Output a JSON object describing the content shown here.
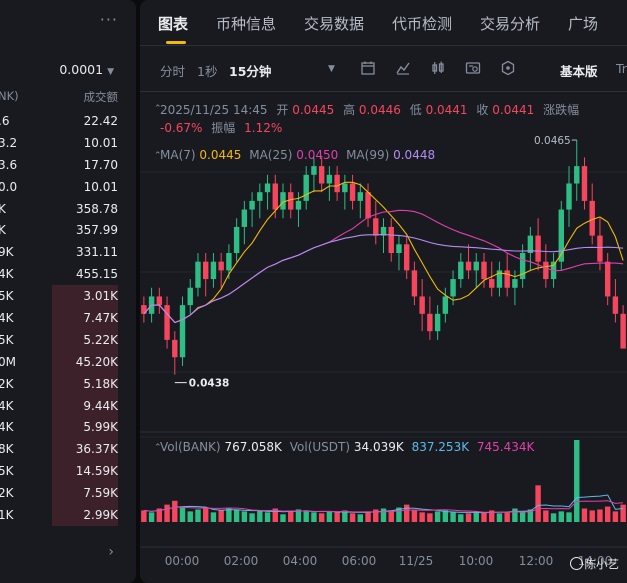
{
  "order_book": {
    "precision": "0.0001",
    "header_left": "NK)",
    "header_right": "成交额",
    "rows": [
      {
        "left": ".6",
        "right": "22.42",
        "bar": 0
      },
      {
        "left": "3.2",
        "right": "10.01",
        "bar": 0
      },
      {
        "left": "3.6",
        "right": "17.70",
        "bar": 0
      },
      {
        "left": "0.0",
        "right": "10.01",
        "bar": 0
      },
      {
        "left": "K",
        "right": "358.78",
        "bar": 0
      },
      {
        "left": "K",
        "right": "357.99",
        "bar": 0
      },
      {
        "left": "9K",
        "right": "331.11",
        "bar": 0
      },
      {
        "left": "4K",
        "right": "455.15",
        "bar": 0
      },
      {
        "left": "5K",
        "right": "3.01K",
        "bar": 1
      },
      {
        "left": "4K",
        "right": "7.47K",
        "bar": 1
      },
      {
        "left": "5K",
        "right": "5.22K",
        "bar": 1
      },
      {
        "left": "0M",
        "right": "45.20K",
        "bar": 1
      },
      {
        "left": "2K",
        "right": "5.18K",
        "bar": 1
      },
      {
        "left": "4K",
        "right": "9.44K",
        "bar": 1
      },
      {
        "left": "4K",
        "right": "5.99K",
        "bar": 1
      },
      {
        "left": "8K",
        "right": "36.37K",
        "bar": 1
      },
      {
        "left": "5K",
        "right": "14.59K",
        "bar": 1
      },
      {
        "left": "2K",
        "right": "7.59K",
        "bar": 1
      },
      {
        "left": "1K",
        "right": "2.99K",
        "bar": 1
      }
    ]
  },
  "tabs": [
    "图表",
    "币种信息",
    "交易数据",
    "代币检测",
    "交易分析",
    "广场"
  ],
  "toolbar": {
    "time": "分时",
    "sec": "1秒",
    "interval": "15分钟",
    "mode": "基本版",
    "extra": "Tr"
  },
  "ohlc": {
    "datetime": "2025/11/25 14:45",
    "open_label": "开",
    "open": "0.0445",
    "high_label": "高",
    "high": "0.0446",
    "low_label": "低",
    "low": "0.0441",
    "close_label": "收",
    "close": "0.0441",
    "change_label": "涨跌幅",
    "change": "-0.67%",
    "amp_label": "振幅",
    "amp": "1.12%"
  },
  "ma": {
    "ma7_label": "MA(7)",
    "ma7": "0.0445",
    "ma25_label": "MA(25)",
    "ma25": "0.0450",
    "ma99_label": "MA(99)",
    "ma99": "0.0448"
  },
  "vol": {
    "bank_label": "Vol(BANK)",
    "bank": "767.058K",
    "usdt_label": "Vol(USDT)",
    "usdt": "34.039K",
    "v2": "837.253K",
    "v3": "745.434K"
  },
  "price_marks": {
    "high": "0.0465",
    "low": "0.0438"
  },
  "x_labels": [
    "00:00",
    "02:00",
    "04:00",
    "06:00",
    "11/25",
    "10:00",
    "12:00",
    "14:00"
  ],
  "watermark": "陈小艺",
  "colors": {
    "up": "#2ebd85",
    "down": "#f6465d",
    "ma7": "#f0b90b",
    "ma25": "#e23fab",
    "ma99": "#b48cf2",
    "accent": "#f0b90b"
  },
  "chart_data": {
    "type": "candlestick",
    "interval": "15m",
    "ylim": [
      0.0436,
      0.0468
    ],
    "x_labels": [
      "00:00",
      "02:00",
      "04:00",
      "06:00",
      "11/25",
      "10:00",
      "12:00",
      "14:00"
    ],
    "candles": [
      [
        0.0446,
        0.0447,
        0.0444,
        0.0445
      ],
      [
        0.0445,
        0.0448,
        0.0444,
        0.0447
      ],
      [
        0.0447,
        0.0448,
        0.0445,
        0.0446
      ],
      [
        0.0446,
        0.0447,
        0.0441,
        0.0442
      ],
      [
        0.0442,
        0.0443,
        0.0438,
        0.044
      ],
      [
        0.044,
        0.0447,
        0.0439,
        0.0446
      ],
      [
        0.0446,
        0.0449,
        0.0445,
        0.0448
      ],
      [
        0.0448,
        0.0452,
        0.0447,
        0.0451
      ],
      [
        0.0451,
        0.0452,
        0.0447,
        0.0449
      ],
      [
        0.0449,
        0.0452,
        0.0448,
        0.0451
      ],
      [
        0.0451,
        0.0452,
        0.0448,
        0.045
      ],
      [
        0.045,
        0.0453,
        0.0449,
        0.0452
      ],
      [
        0.0452,
        0.0456,
        0.0451,
        0.0455
      ],
      [
        0.0455,
        0.0458,
        0.0453,
        0.0457
      ],
      [
        0.0457,
        0.0459,
        0.0455,
        0.0458
      ],
      [
        0.0458,
        0.046,
        0.0456,
        0.0459
      ],
      [
        0.0459,
        0.0461,
        0.0457,
        0.046
      ],
      [
        0.046,
        0.0461,
        0.0456,
        0.0457
      ],
      [
        0.0457,
        0.046,
        0.0456,
        0.0459
      ],
      [
        0.0459,
        0.046,
        0.0456,
        0.0457
      ],
      [
        0.0457,
        0.0459,
        0.0455,
        0.0458
      ],
      [
        0.0458,
        0.0462,
        0.0457,
        0.0461
      ],
      [
        0.0461,
        0.0463,
        0.0459,
        0.0462
      ],
      [
        0.0462,
        0.0463,
        0.0459,
        0.046
      ],
      [
        0.046,
        0.0462,
        0.0458,
        0.0461
      ],
      [
        0.0461,
        0.0462,
        0.0458,
        0.0459
      ],
      [
        0.0459,
        0.0461,
        0.0457,
        0.046
      ],
      [
        0.046,
        0.0461,
        0.0457,
        0.0458
      ],
      [
        0.0458,
        0.046,
        0.0456,
        0.0459
      ],
      [
        0.0459,
        0.046,
        0.0455,
        0.0456
      ],
      [
        0.0456,
        0.0458,
        0.0453,
        0.0454
      ],
      [
        0.0454,
        0.0456,
        0.0452,
        0.0455
      ],
      [
        0.0455,
        0.0456,
        0.0451,
        0.0452
      ],
      [
        0.0452,
        0.0454,
        0.045,
        0.0453
      ],
      [
        0.0453,
        0.0454,
        0.0449,
        0.045
      ],
      [
        0.045,
        0.0451,
        0.0446,
        0.0447
      ],
      [
        0.0447,
        0.0449,
        0.0443,
        0.0445
      ],
      [
        0.0445,
        0.0447,
        0.0442,
        0.0443
      ],
      [
        0.0443,
        0.0446,
        0.0442,
        0.0445
      ],
      [
        0.0445,
        0.0448,
        0.0444,
        0.0447
      ],
      [
        0.0447,
        0.045,
        0.0446,
        0.0449
      ],
      [
        0.0449,
        0.0452,
        0.0448,
        0.0451
      ],
      [
        0.0451,
        0.0453,
        0.0449,
        0.045
      ],
      [
        0.045,
        0.0452,
        0.0448,
        0.0451
      ],
      [
        0.0451,
        0.0452,
        0.0448,
        0.0449
      ],
      [
        0.0449,
        0.0451,
        0.0447,
        0.0448
      ],
      [
        0.0448,
        0.0451,
        0.0447,
        0.045
      ],
      [
        0.045,
        0.0452,
        0.0447,
        0.0448
      ],
      [
        0.0448,
        0.045,
        0.0446,
        0.0449
      ],
      [
        0.0449,
        0.0453,
        0.0448,
        0.0452
      ],
      [
        0.0452,
        0.0455,
        0.045,
        0.0454
      ],
      [
        0.0454,
        0.0456,
        0.045,
        0.0451
      ],
      [
        0.0451,
        0.0453,
        0.0448,
        0.0449
      ],
      [
        0.0449,
        0.0452,
        0.0448,
        0.0451
      ],
      [
        0.0451,
        0.0458,
        0.045,
        0.0457
      ],
      [
        0.0457,
        0.0462,
        0.0455,
        0.046
      ],
      [
        0.046,
        0.0465,
        0.0458,
        0.0462
      ],
      [
        0.0462,
        0.0463,
        0.0457,
        0.0458
      ],
      [
        0.0458,
        0.046,
        0.0453,
        0.0454
      ],
      [
        0.0454,
        0.0456,
        0.045,
        0.0451
      ],
      [
        0.0451,
        0.0452,
        0.0446,
        0.0447
      ],
      [
        0.0447,
        0.0449,
        0.0444,
        0.0445
      ],
      [
        0.0445,
        0.0446,
        0.0441,
        0.0441
      ]
    ],
    "volume_bars": [
      12,
      10,
      14,
      18,
      22,
      16,
      11,
      13,
      15,
      10,
      12,
      14,
      13,
      11,
      9,
      12,
      10,
      14,
      8,
      11,
      13,
      12,
      10,
      9,
      11,
      10,
      12,
      9,
      8,
      11,
      13,
      14,
      12,
      15,
      18,
      12,
      10,
      9,
      11,
      12,
      10,
      8,
      9,
      11,
      10,
      12,
      9,
      10,
      14,
      11,
      13,
      38,
      12,
      9,
      11,
      10,
      85,
      14,
      12,
      13,
      16,
      11,
      18
    ]
  }
}
